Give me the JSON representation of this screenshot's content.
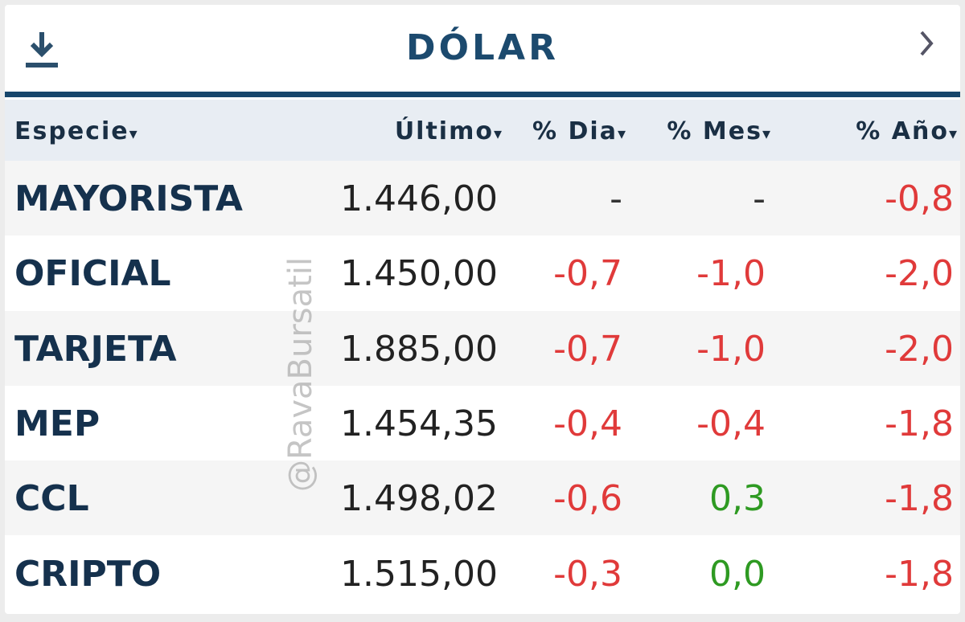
{
  "header": {
    "title": "DÓLAR"
  },
  "table": {
    "columns": [
      "Especie",
      "Último",
      "% Dia",
      "% Mes",
      "% Año"
    ],
    "rows": [
      [
        "MAYORISTA",
        "1.446,00",
        "-",
        "-",
        "-0,8"
      ],
      [
        "OFICIAL",
        "1.450,00",
        "-0,7",
        "-1,0",
        "-2,0"
      ],
      [
        "TARJETA",
        "1.885,00",
        "-0,7",
        "-1,0",
        "-2,0"
      ],
      [
        "MEP",
        "1.454,35",
        "-0,4",
        "-0,4",
        "-1,8"
      ],
      [
        "CCL",
        "1.498,02",
        "-0,6",
        "0,3",
        "-1,8"
      ],
      [
        "CRIPTO",
        "1.515,00",
        "-0,3",
        "0,0",
        "-1,8"
      ]
    ]
  },
  "watermark": "@RavaBursatil"
}
